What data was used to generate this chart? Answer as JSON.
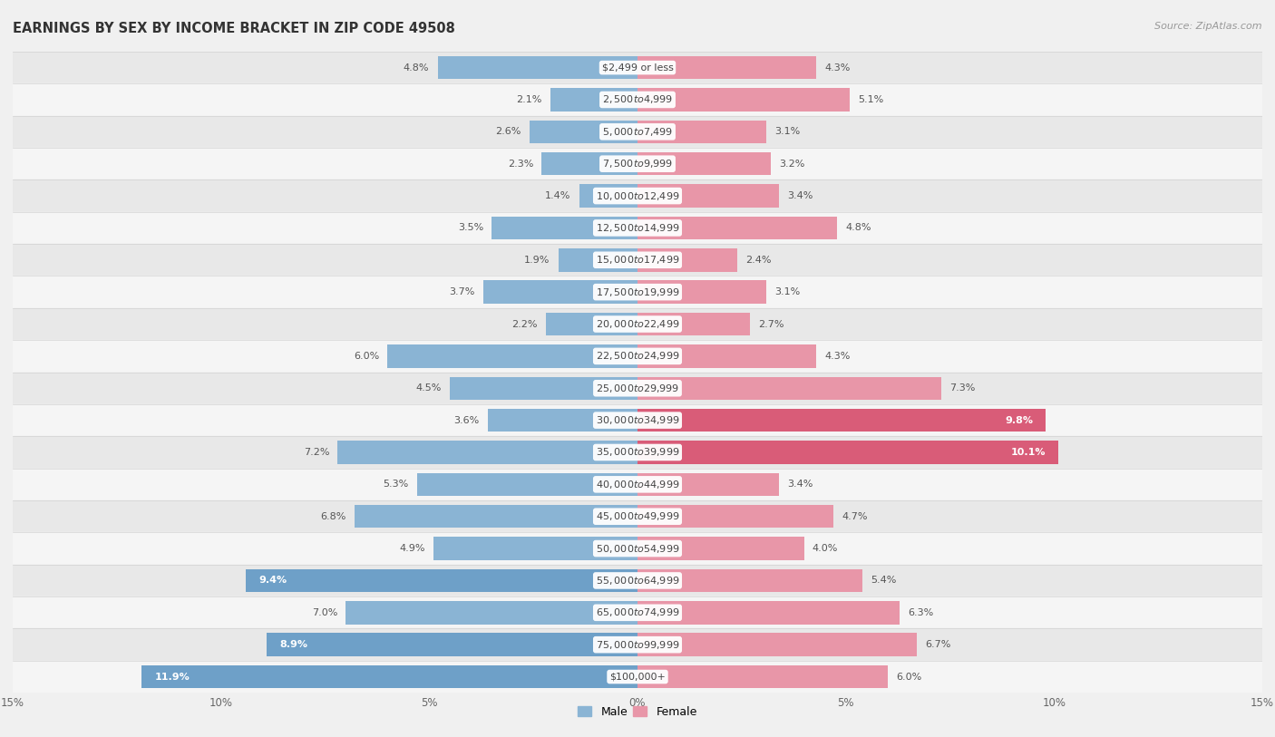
{
  "title": "EARNINGS BY SEX BY INCOME BRACKET IN ZIP CODE 49508",
  "source": "Source: ZipAtlas.com",
  "categories": [
    "$2,499 or less",
    "$2,500 to $4,999",
    "$5,000 to $7,499",
    "$7,500 to $9,999",
    "$10,000 to $12,499",
    "$12,500 to $14,999",
    "$15,000 to $17,499",
    "$17,500 to $19,999",
    "$20,000 to $22,499",
    "$22,500 to $24,999",
    "$25,000 to $29,999",
    "$30,000 to $34,999",
    "$35,000 to $39,999",
    "$40,000 to $44,999",
    "$45,000 to $49,999",
    "$50,000 to $54,999",
    "$55,000 to $64,999",
    "$65,000 to $74,999",
    "$75,000 to $99,999",
    "$100,000+"
  ],
  "male_values": [
    4.8,
    2.1,
    2.6,
    2.3,
    1.4,
    3.5,
    1.9,
    3.7,
    2.2,
    6.0,
    4.5,
    3.6,
    7.2,
    5.3,
    6.8,
    4.9,
    9.4,
    7.0,
    8.9,
    11.9
  ],
  "female_values": [
    4.3,
    5.1,
    3.1,
    3.2,
    3.4,
    4.8,
    2.4,
    3.1,
    2.7,
    4.3,
    7.3,
    9.8,
    10.1,
    3.4,
    4.7,
    4.0,
    5.4,
    6.3,
    6.7,
    6.0
  ],
  "male_color": "#8ab4d4",
  "female_color": "#e896a8",
  "highlight_male_color": "#6ea0c8",
  "highlight_female_color": "#d95c78",
  "male_inside_thresh": 7.5,
  "female_inside_thresh": 7.5,
  "xlim": 15.0,
  "bar_height": 0.72,
  "bg_color": "#f0f0f0",
  "row_colors": [
    "#e8e8e8",
    "#f5f5f5"
  ],
  "title_fontsize": 10.5,
  "label_fontsize": 8.0,
  "cat_fontsize": 8.0,
  "axis_fontsize": 8.5,
  "source_fontsize": 8.0,
  "inside_label_color": "#ffffff",
  "outside_label_color": "#555555"
}
